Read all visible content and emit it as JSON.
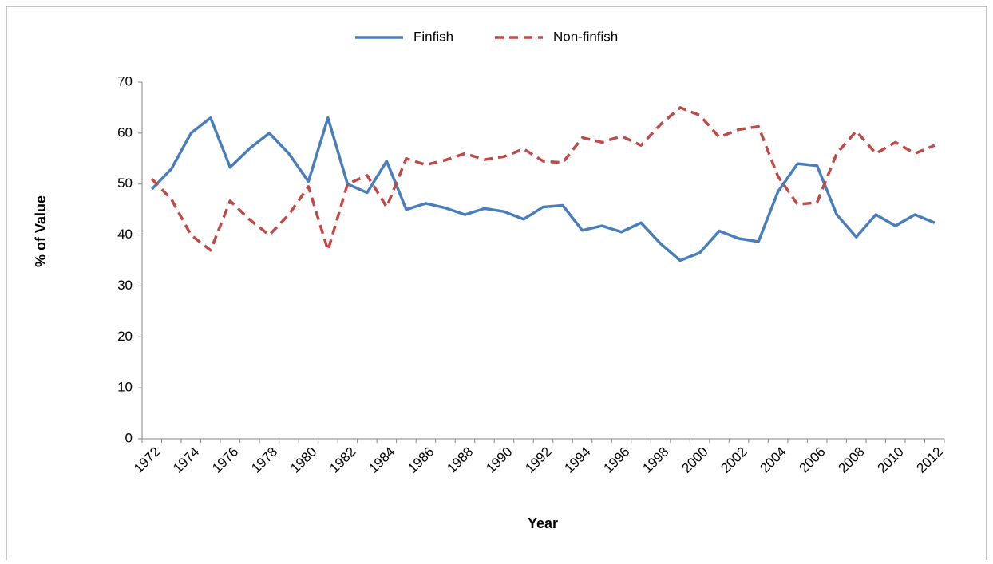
{
  "chart_data": {
    "type": "line",
    "categories": [
      "1972",
      null,
      "1974",
      null,
      "1976",
      null,
      "1978",
      null,
      "1980",
      null,
      "1982",
      null,
      "1984",
      null,
      "1986",
      null,
      "1988",
      null,
      "1990",
      null,
      "1992",
      null,
      "1994",
      null,
      "1996",
      null,
      "1998",
      null,
      "2000",
      null,
      "2002",
      null,
      "2004",
      null,
      "2006",
      null,
      "2008",
      null,
      "2010",
      null,
      "2012"
    ],
    "series": [
      {
        "name": "Finfish",
        "color": "#4a7ebb",
        "dashed": false,
        "values": [
          49,
          53,
          60,
          63,
          53.3,
          57,
          60,
          56,
          50.5,
          63,
          50,
          48.3,
          54.5,
          45,
          46.2,
          45.3,
          44,
          45.2,
          44.6,
          43.1,
          45.5,
          45.8,
          40.9,
          41.8,
          40.6,
          42.4,
          38.3,
          35,
          36.5,
          40.8,
          39.3,
          38.7,
          48.5,
          54,
          53.6,
          44,
          39.6,
          44,
          41.8,
          44,
          42.4
        ]
      },
      {
        "name": "Non-finfish",
        "color": "#be4b48",
        "dashed": true,
        "values": [
          51,
          47,
          40,
          37,
          46.7,
          43,
          40,
          44,
          49.5,
          37,
          50,
          51.7,
          45.5,
          55,
          53.8,
          54.7,
          56,
          54.8,
          55.4,
          56.9,
          54.5,
          54.2,
          59.1,
          58.2,
          59.4,
          57.6,
          61.7,
          65,
          63.5,
          59.2,
          60.7,
          61.3,
          51.5,
          46,
          46.4,
          56,
          60.4,
          56,
          58.2,
          56,
          57.6
        ]
      }
    ],
    "ylim": [
      0,
      70
    ],
    "yticks": [
      0,
      10,
      20,
      30,
      40,
      50,
      60,
      70
    ],
    "x_label": "Year",
    "y_label": "% of Value",
    "legend": "top"
  }
}
